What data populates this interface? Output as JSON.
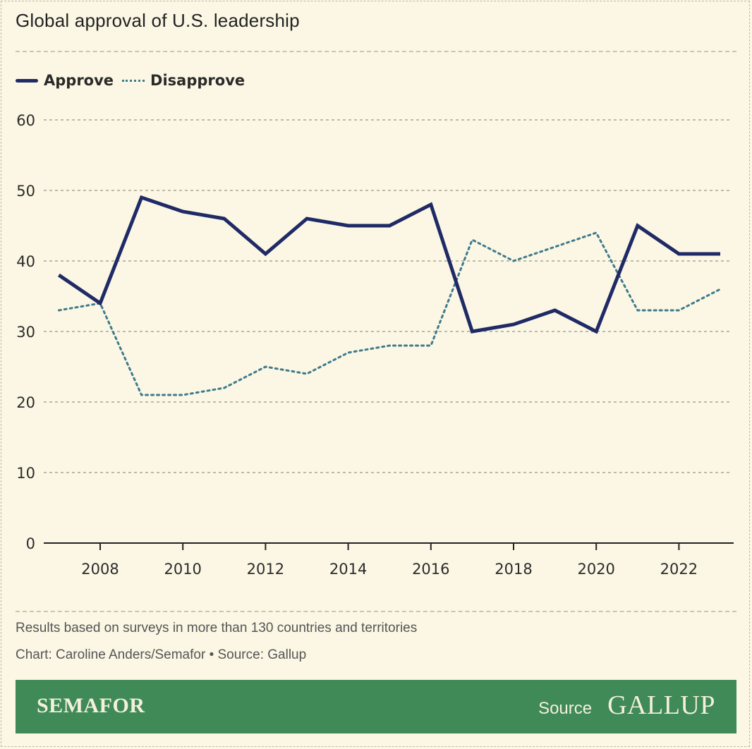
{
  "title": "Global approval of U.S. leadership",
  "legend": [
    {
      "label": "Approve"
    },
    {
      "label": "Disapprove"
    }
  ],
  "colors": {
    "approve": "#1f2a66",
    "disapprove": "#3f7a8c",
    "background": "#fbf7e4",
    "footer": "#3f8a56"
  },
  "chart_data": {
    "type": "line",
    "title": "Global approval of U.S. leadership",
    "xlabel": "",
    "ylabel": "",
    "ylim": [
      0,
      60
    ],
    "yticks": [
      0,
      10,
      20,
      30,
      40,
      50,
      60
    ],
    "xticks": [
      2008,
      2010,
      2012,
      2014,
      2016,
      2018,
      2020,
      2022
    ],
    "x": [
      2007,
      2008,
      2009,
      2010,
      2011,
      2012,
      2013,
      2014,
      2015,
      2016,
      2017,
      2018,
      2019,
      2020,
      2021,
      2022,
      2023
    ],
    "series": [
      {
        "name": "Approve",
        "values": [
          38,
          34,
          49,
          47,
          46,
          41,
          46,
          45,
          45,
          48,
          30,
          31,
          33,
          30,
          45,
          41,
          41
        ]
      },
      {
        "name": "Disapprove",
        "values": [
          33,
          34,
          21,
          21,
          22,
          25,
          24,
          27,
          28,
          28,
          43,
          40,
          42,
          44,
          33,
          33,
          36
        ]
      }
    ],
    "grid": true,
    "legend_position": "top-left"
  },
  "notes": {
    "subtitle_note": "Results based on surveys in more than 130 countries and territories",
    "credit": "Chart: Caroline Anders/Semafor • Source: Gallup"
  },
  "footer": {
    "brand": "SEMAFOR",
    "source_label": "Source",
    "source_logo": "GALLUP"
  }
}
